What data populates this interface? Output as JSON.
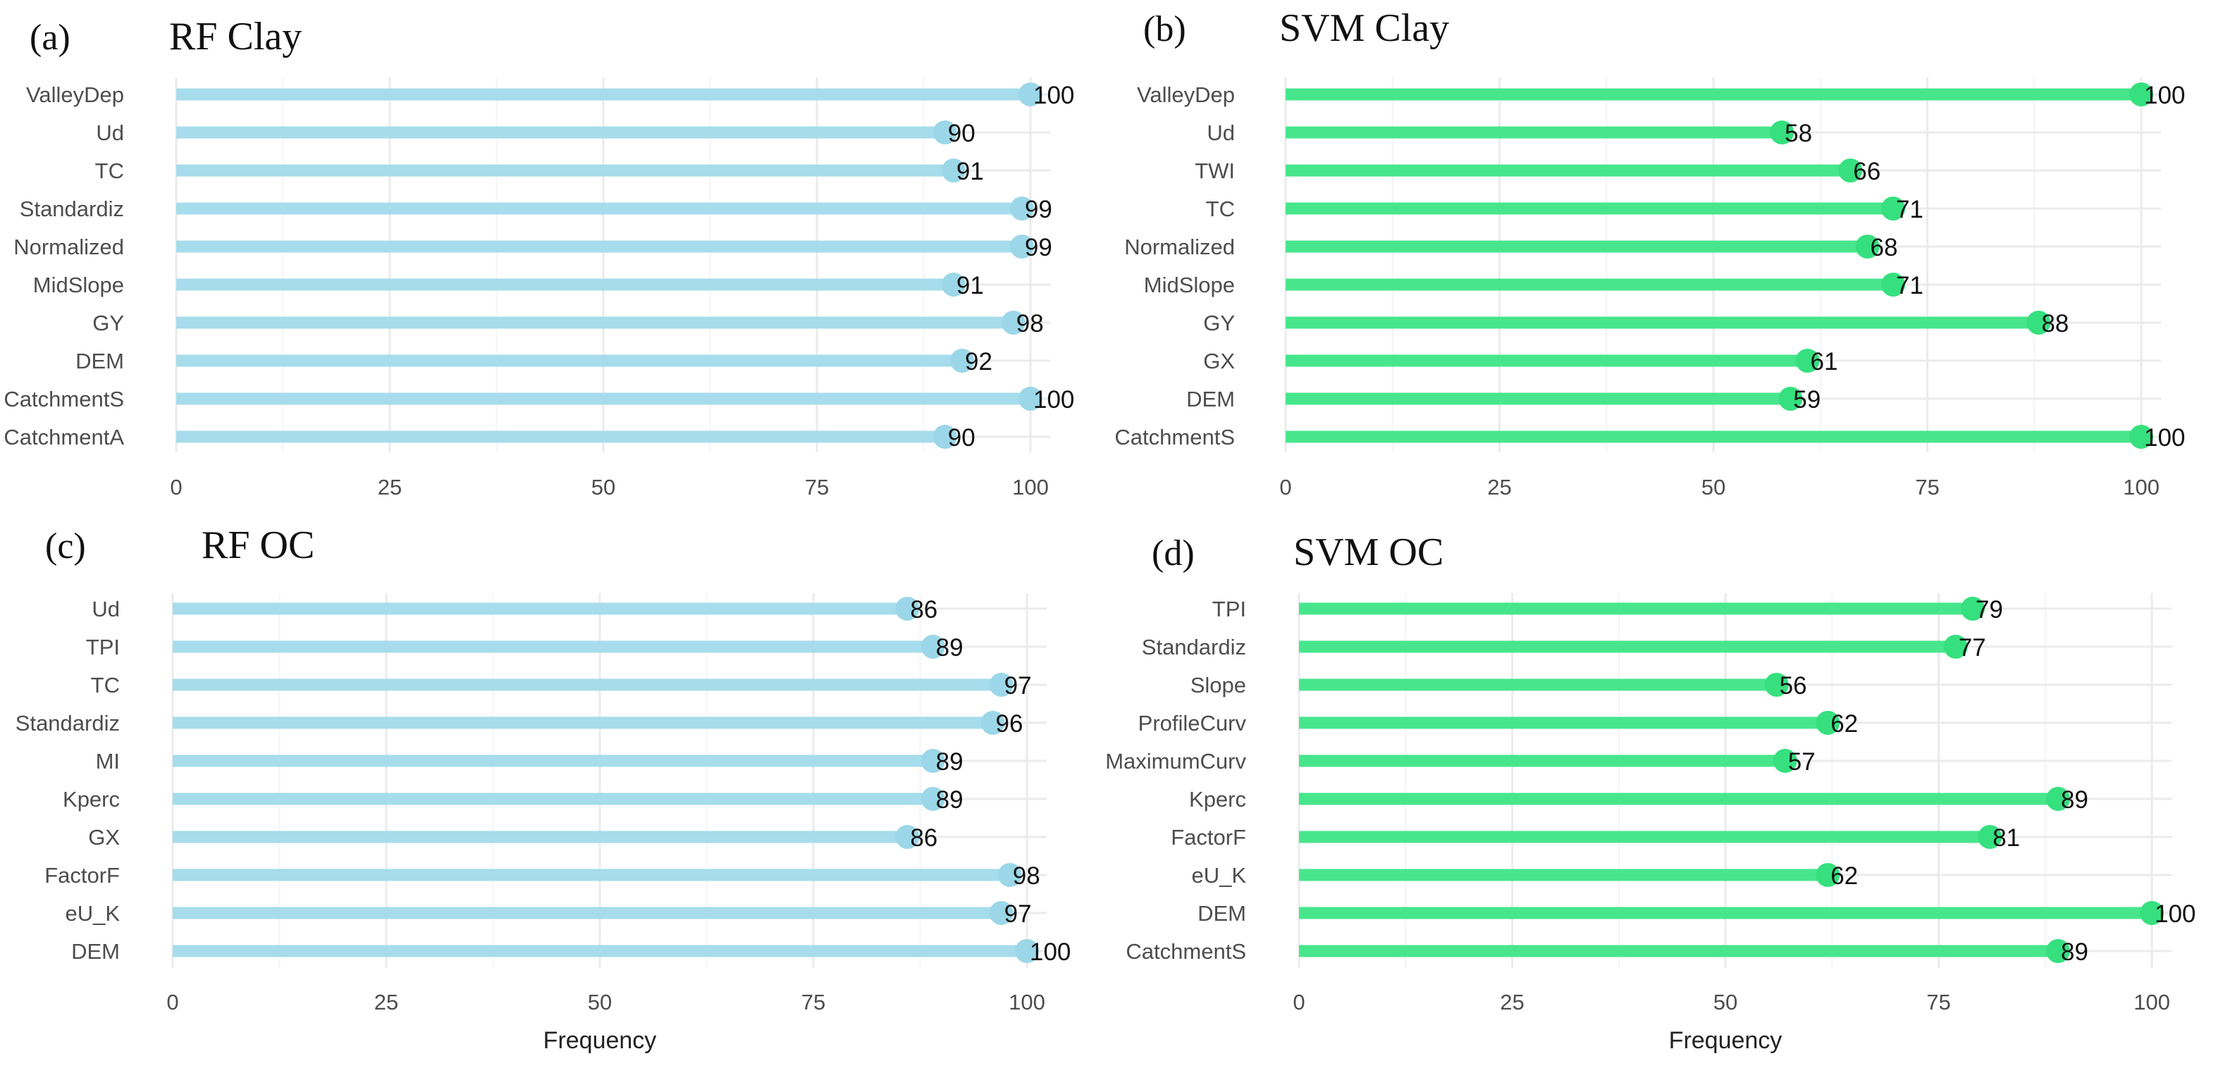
{
  "colors": {
    "rf": "#a6dceb",
    "rf_point": "#9bd7e8",
    "svm": "#47e68c",
    "svm_point": "#36e07e",
    "grid": "#ebebeb"
  },
  "chart_data": [
    {
      "id": "a",
      "type": "bar",
      "orientation": "horizontal-lollipop",
      "letter": "(a)",
      "title": "RF Clay",
      "color_key": "rf",
      "categories": [
        "ValleyDep",
        "Ud",
        "TC",
        "Standardiz",
        "Normalized",
        "MidSlope",
        "GY",
        "DEM",
        "CatchmentS",
        "CatchmentA"
      ],
      "values": [
        100,
        90,
        91,
        99,
        99,
        91,
        98,
        92,
        100,
        90
      ],
      "xlim": [
        0,
        100
      ],
      "xticks": [
        0,
        25,
        50,
        75,
        100
      ],
      "xlabel": ""
    },
    {
      "id": "b",
      "type": "bar",
      "orientation": "horizontal-lollipop",
      "letter": "(b)",
      "title": "SVM Clay",
      "color_key": "svm",
      "categories": [
        "ValleyDep",
        "Ud",
        "TWI",
        "TC",
        "Normalized",
        "MidSlope",
        "GY",
        "GX",
        "DEM",
        "CatchmentS"
      ],
      "values": [
        100,
        58,
        66,
        71,
        68,
        71,
        88,
        61,
        59,
        100
      ],
      "xlim": [
        0,
        100
      ],
      "xticks": [
        0,
        25,
        50,
        75,
        100
      ],
      "xlabel": ""
    },
    {
      "id": "c",
      "type": "bar",
      "orientation": "horizontal-lollipop",
      "letter": "(c)",
      "title": "RF OC",
      "color_key": "rf",
      "categories": [
        "Ud",
        "TPI",
        "TC",
        "Standardiz",
        "MI",
        "Kperc",
        "GX",
        "FactorF",
        "eU_K",
        "DEM"
      ],
      "values": [
        86,
        89,
        97,
        96,
        89,
        89,
        86,
        98,
        97,
        100
      ],
      "xlim": [
        0,
        100
      ],
      "xticks": [
        0,
        25,
        50,
        75,
        100
      ],
      "xlabel": "Frequency"
    },
    {
      "id": "d",
      "type": "bar",
      "orientation": "horizontal-lollipop",
      "letter": "(d)",
      "title": "SVM OC",
      "color_key": "svm",
      "categories": [
        "TPI",
        "Standardiz",
        "Slope",
        "ProfileCurv",
        "MaximumCurv",
        "Kperc",
        "FactorF",
        "eU_K",
        "DEM",
        "CatchmentS"
      ],
      "values": [
        79,
        77,
        56,
        62,
        57,
        89,
        81,
        62,
        100,
        89
      ],
      "xlim": [
        0,
        100
      ],
      "xticks": [
        0,
        25,
        50,
        75,
        100
      ],
      "xlabel": "Frequency"
    }
  ]
}
